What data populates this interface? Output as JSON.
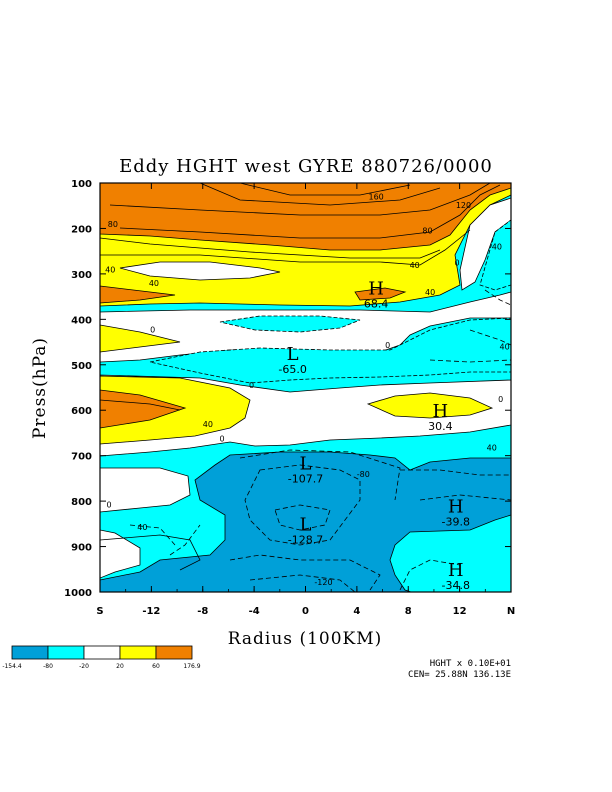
{
  "chart_data": {
    "type": "contour",
    "title": "Eddy HGHT west GYRE 880726/0000",
    "xlabel": "Radius (100KM)",
    "ylabel": "Press(hPa)",
    "x_ticks": [
      "S",
      "-12",
      "-8",
      "-4",
      "0",
      "4",
      "8",
      "12",
      "N"
    ],
    "y_ticks": [
      "100",
      "200",
      "300",
      "400",
      "500",
      "600",
      "700",
      "800",
      "900",
      "1000"
    ],
    "xlim": [
      -16,
      16
    ],
    "ylim": [
      1000,
      100
    ],
    "legend": {
      "placement": "bottom-left",
      "labels": [
        "-154.4",
        "-80",
        "-20",
        "20",
        "60",
        "176.9"
      ],
      "colors": [
        "#00a0d8",
        "#00ffff",
        "#ffffff",
        "#ffff00",
        "#f08000"
      ]
    },
    "contour_labels": [
      {
        "text": "160",
        "x": 5.5,
        "p": 130
      },
      {
        "text": "120",
        "x": 12.3,
        "p": 148
      },
      {
        "text": "80",
        "x": -15,
        "p": 190
      },
      {
        "text": "80",
        "x": 9.5,
        "p": 205
      },
      {
        "text": "40",
        "x": -15.2,
        "p": 290
      },
      {
        "text": "40",
        "x": -11.8,
        "p": 320
      },
      {
        "text": "40",
        "x": 8.5,
        "p": 280
      },
      {
        "text": "0",
        "x": 11.8,
        "p": 275
      },
      {
        "text": "40",
        "x": 14.9,
        "p": 240
      },
      {
        "text": "40",
        "x": 9.7,
        "p": 340
      },
      {
        "text": "0",
        "x": -11.9,
        "p": 422
      },
      {
        "text": "0",
        "x": 6.4,
        "p": 457
      },
      {
        "text": "40",
        "x": 15.5,
        "p": 460
      },
      {
        "text": "0",
        "x": -4.2,
        "p": 544
      },
      {
        "text": "0",
        "x": 15.2,
        "p": 575
      },
      {
        "text": "40",
        "x": -7.6,
        "p": 630
      },
      {
        "text": "0",
        "x": -6.5,
        "p": 662
      },
      {
        "text": "40",
        "x": 14.5,
        "p": 682
      },
      {
        "text": "-80",
        "x": 4.5,
        "p": 740
      },
      {
        "text": "0",
        "x": -15.3,
        "p": 808
      },
      {
        "text": "40",
        "x": -12.7,
        "p": 857
      },
      {
        "text": "-120",
        "x": 1.4,
        "p": 978
      }
    ],
    "extrema": [
      {
        "type": "H",
        "value": "68.4",
        "x": 5.5,
        "p": 345
      },
      {
        "type": "L",
        "value": "-65.0",
        "x": -1,
        "p": 490
      },
      {
        "type": "H",
        "value": "30.4",
        "x": 10.5,
        "p": 615
      },
      {
        "type": "L",
        "value": "-107.7",
        "x": 0,
        "p": 730
      },
      {
        "type": "H",
        "value": "-39.8",
        "x": 11.7,
        "p": 825
      },
      {
        "type": "L",
        "value": "-128.7",
        "x": 0,
        "p": 865
      },
      {
        "type": "H",
        "value": "-34.8",
        "x": 11.7,
        "p": 965
      }
    ],
    "info": {
      "line1": "HGHT x  0.10E+01",
      "line2": "CEN= 25.88N  136.13E"
    }
  }
}
